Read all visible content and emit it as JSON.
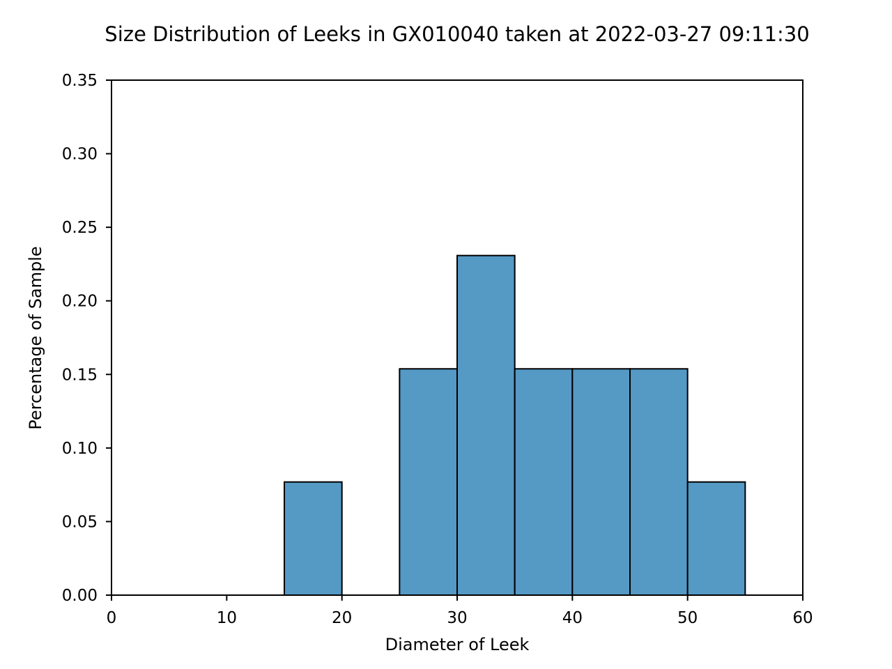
{
  "chart_data": {
    "type": "bar",
    "title": "Size Distribution of Leeks in GX010040 taken at 2022-03-27 09:11:30",
    "xlabel": "Diameter of Leek",
    "ylabel": "Percentage of Sample",
    "bins": [
      {
        "x_start": 15,
        "x_end": 20,
        "value": 0.0769
      },
      {
        "x_start": 25,
        "x_end": 30,
        "value": 0.1538
      },
      {
        "x_start": 30,
        "x_end": 35,
        "value": 0.2308
      },
      {
        "x_start": 35,
        "x_end": 40,
        "value": 0.1538
      },
      {
        "x_start": 40,
        "x_end": 45,
        "value": 0.1538
      },
      {
        "x_start": 45,
        "x_end": 50,
        "value": 0.1538
      },
      {
        "x_start": 50,
        "x_end": 55,
        "value": 0.0769
      }
    ],
    "xlim": [
      0,
      60
    ],
    "ylim": [
      0,
      0.35
    ],
    "x_ticks": [
      "0",
      "10",
      "20",
      "30",
      "40",
      "50",
      "60"
    ],
    "y_ticks": [
      "0.00",
      "0.05",
      "0.10",
      "0.15",
      "0.20",
      "0.25",
      "0.30",
      "0.35"
    ],
    "grid": false,
    "bar_color": "#5599c5",
    "edge_color": "#000000"
  }
}
